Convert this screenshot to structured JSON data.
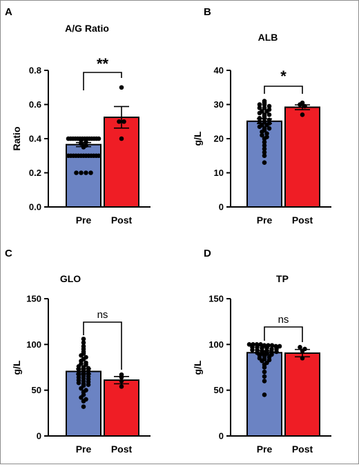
{
  "chart_data": [
    {
      "type": "bar",
      "panel": "A",
      "title": "A/G Ratio",
      "ylabel": "Ratio",
      "ylim": [
        0,
        0.8
      ],
      "yticks": [
        "0.0",
        "0.2",
        "0.4",
        "0.6",
        "0.8"
      ],
      "yticks_values": [
        0,
        0.2,
        0.4,
        0.6,
        0.8
      ],
      "categories": [
        "Pre",
        "Post"
      ],
      "values": [
        0.365,
        0.525
      ],
      "errors": [
        0.012,
        0.063
      ],
      "colors": [
        "#6b83c3",
        "#ef1d25"
      ],
      "points": [
        [
          0.4,
          0.4,
          0.4,
          0.4,
          0.4,
          0.4,
          0.4,
          0.4,
          0.4,
          0.4,
          0.4,
          0.4,
          0.4,
          0.4,
          0.39,
          0.38,
          0.37,
          0.36,
          0.35,
          0.3,
          0.3,
          0.3,
          0.3,
          0.3,
          0.3,
          0.3,
          0.3,
          0.3,
          0.3,
          0.3,
          0.3,
          0.3,
          0.2,
          0.2,
          0.2,
          0.2
        ],
        [
          0.7,
          0.5,
          0.5,
          0.4
        ]
      ],
      "significance": "**"
    },
    {
      "type": "bar",
      "panel": "B",
      "title": "ALB",
      "ylabel": "g/L",
      "ylim": [
        0,
        40
      ],
      "yticks": [
        "0",
        "10",
        "20",
        "30",
        "40"
      ],
      "yticks_values": [
        0,
        10,
        20,
        30,
        40
      ],
      "categories": [
        "Pre",
        "Post"
      ],
      "values": [
        25.1,
        29.2
      ],
      "errors": [
        0.7,
        0.7
      ],
      "colors": [
        "#6b83c3",
        "#ef1d25"
      ],
      "points": [
        [
          31,
          30.5,
          30,
          30,
          29.5,
          29,
          29,
          28.5,
          28,
          28,
          27.5,
          27,
          27,
          26.5,
          26,
          26,
          25.5,
          25,
          25,
          24.5,
          24,
          24,
          23.5,
          23,
          23,
          22.5,
          22,
          21.5,
          21,
          20.5,
          20,
          19,
          18,
          17,
          16,
          15,
          13
        ],
        [
          30.5,
          30,
          29.5,
          27
        ]
      ],
      "significance": "*"
    },
    {
      "type": "bar",
      "panel": "C",
      "title": "GLO",
      "ylabel": "g/L",
      "ylim": [
        0,
        150
      ],
      "yticks": [
        "0",
        "50",
        "100",
        "150"
      ],
      "yticks_values": [
        0,
        50,
        100,
        150
      ],
      "categories": [
        "Pre",
        "Post"
      ],
      "values": [
        70.5,
        61
      ],
      "errors": [
        2.8,
        4
      ],
      "colors": [
        "#6b83c3",
        "#ef1d25"
      ],
      "points": [
        [
          106,
          102,
          98,
          95,
          92,
          90,
          88,
          86,
          84,
          82,
          80,
          79,
          78,
          76,
          75,
          74,
          73,
          72,
          71,
          70,
          69,
          68,
          67,
          66,
          65,
          64,
          63,
          62,
          61,
          60,
          59,
          58,
          57,
          56,
          55,
          52,
          50,
          48,
          45,
          42,
          40,
          38,
          32
        ],
        [
          67,
          64,
          60,
          54
        ]
      ],
      "significance": "ns"
    },
    {
      "type": "bar",
      "panel": "D",
      "title": "TP",
      "ylabel": "g/L",
      "ylim": [
        0,
        150
      ],
      "yticks": [
        "0",
        "50",
        "100",
        "150"
      ],
      "yticks_values": [
        0,
        50,
        100,
        150
      ],
      "categories": [
        "Pre",
        "Post"
      ],
      "values": [
        91,
        90.5
      ],
      "errors": [
        2,
        4
      ],
      "colors": [
        "#6b83c3",
        "#ef1d25"
      ],
      "points": [
        [
          100,
          100,
          100,
          100,
          99,
          99,
          99,
          98,
          98,
          97,
          97,
          96,
          96,
          95,
          95,
          94,
          94,
          93,
          93,
          92,
          92,
          91,
          90,
          90,
          89,
          88,
          87,
          86,
          85,
          84,
          83,
          82,
          80,
          78,
          75,
          70,
          65,
          60,
          45
        ],
        [
          97,
          95,
          93,
          85
        ]
      ],
      "significance": "ns"
    }
  ]
}
